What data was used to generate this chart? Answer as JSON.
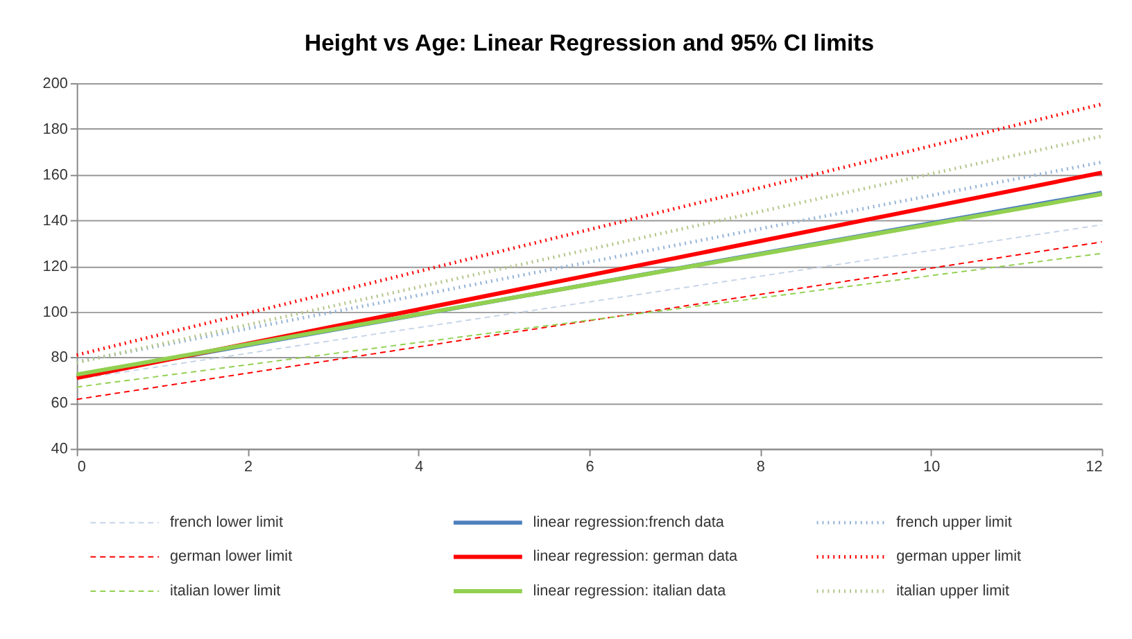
{
  "chart_data": {
    "type": "line",
    "title": "Height vs Age: Linear Regression and 95% CI  limits",
    "x": [
      0,
      12
    ],
    "xlim": [
      0,
      12
    ],
    "xticks": [
      0,
      2,
      4,
      6,
      8,
      10,
      12
    ],
    "ylim": [
      40,
      200
    ],
    "yticks": [
      40,
      60,
      80,
      100,
      120,
      140,
      160,
      180,
      200
    ],
    "grid": "y",
    "legend": "bottom",
    "marker": "none",
    "series": [
      {
        "name": "french lower limit",
        "color": "#c6d4e8",
        "line_style": "dashed",
        "values": [
          70.5,
          138
        ]
      },
      {
        "name": "german lower limit",
        "color": "#ff0000",
        "line_style": "dashed",
        "values": [
          61.6,
          130.5
        ]
      },
      {
        "name": "italian lower limit",
        "color": "#92d050",
        "line_style": "dashed",
        "values": [
          67,
          125.5
        ]
      },
      {
        "name": "linear regression:french data",
        "color": "#4f81bd",
        "line_style": "solid",
        "values": [
          72,
          152
        ]
      },
      {
        "name": "linear regression: german data",
        "color": "#ff0000",
        "line_style": "solid",
        "values": [
          71,
          160.8
        ]
      },
      {
        "name": "linear regression: italian data",
        "color": "#92d050",
        "line_style": "solid",
        "values": [
          72.5,
          151.4
        ]
      },
      {
        "name": "french upper limit",
        "color": "#95b3d7",
        "line_style": "dotted",
        "values": [
          78,
          165.4
        ]
      },
      {
        "name": "german upper limit",
        "color": "#ff0000",
        "line_style": "dotted",
        "values": [
          81,
          190.8
        ]
      },
      {
        "name": "italian upper limit",
        "color": "#b3c68a",
        "line_style": "dotted",
        "values": [
          77.7,
          176.8
        ]
      }
    ]
  }
}
